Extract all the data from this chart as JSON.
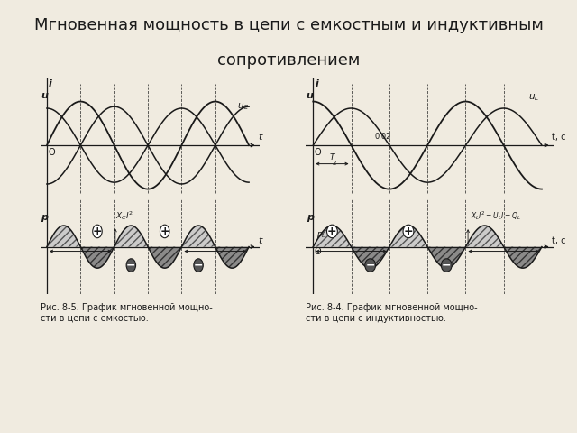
{
  "title_line1": "Мгновенная мощность в цепи с емкостным и индуктивным",
  "title_line2": "сопротивлением",
  "title_fontsize": 13,
  "page_bg": "#f0ebe0",
  "fig_bg": "#f0ebe0",
  "panel_bg": "#ede8d8",
  "line_color": "#1a1a1a",
  "caption_left": "Рис. 8-5. График мгновенной мощно-\nсти в цепи с емкостью.",
  "caption_right": "Рис. 8-4. График мгновенной мощно-\nсти в цепи с индуктивностью.",
  "caption_fontsize": 7.0
}
